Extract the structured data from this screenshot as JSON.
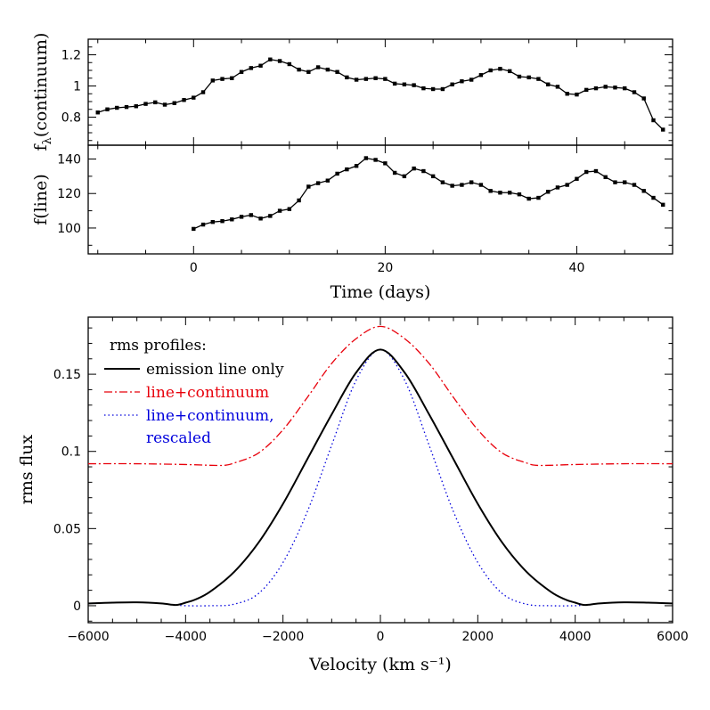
{
  "chart_data": [
    {
      "id": "continuum",
      "type": "line",
      "ylabel_main": "f",
      "ylabel_sub": "λ",
      "ylabel_rest": "(continuum)",
      "xlim": [
        -11,
        50
      ],
      "ylim": [
        0.62,
        1.3
      ],
      "yticks": [
        0.8,
        1.0,
        1.2
      ],
      "ytick_labels": [
        "0.8",
        "1",
        "1.2"
      ],
      "x": [
        -10,
        -9,
        -8,
        -7,
        -6,
        -5,
        -4,
        -3,
        -2,
        -1,
        0,
        1,
        2,
        3,
        4,
        5,
        6,
        7,
        8,
        9,
        10,
        11,
        12,
        13,
        14,
        15,
        16,
        17,
        18,
        19,
        20,
        21,
        22,
        23,
        24,
        25,
        26,
        27,
        28,
        29,
        30,
        31,
        32,
        33,
        34,
        35,
        36,
        37,
        38,
        39,
        40,
        41,
        42,
        43,
        44,
        45,
        46,
        47,
        48,
        49
      ],
      "y": [
        0.83,
        0.85,
        0.86,
        0.865,
        0.87,
        0.885,
        0.895,
        0.88,
        0.89,
        0.91,
        0.925,
        0.96,
        1.035,
        1.045,
        1.05,
        1.09,
        1.115,
        1.13,
        1.17,
        1.16,
        1.14,
        1.105,
        1.09,
        1.12,
        1.105,
        1.09,
        1.055,
        1.04,
        1.045,
        1.05,
        1.045,
        1.015,
        1.01,
        1.005,
        0.985,
        0.98,
        0.98,
        1.01,
        1.03,
        1.04,
        1.07,
        1.1,
        1.11,
        1.095,
        1.06,
        1.055,
        1.045,
        1.01,
        0.995,
        0.95,
        0.945,
        0.975,
        0.985,
        0.995,
        0.99,
        0.985,
        0.96,
        0.92,
        0.78,
        0.72
      ]
    },
    {
      "id": "line",
      "type": "line",
      "ylabel": "f(line)",
      "xlabel": "Time (days)",
      "xlim": [
        -11,
        50
      ],
      "ylim": [
        85,
        148
      ],
      "yticks": [
        100,
        120,
        140
      ],
      "ytick_labels": [
        "100",
        "120",
        "140"
      ],
      "xticks": [
        0,
        20,
        40
      ],
      "xtick_labels": [
        "0",
        "20",
        "40"
      ],
      "x": [
        0,
        1,
        2,
        3,
        4,
        5,
        6,
        7,
        8,
        9,
        10,
        11,
        12,
        13,
        14,
        15,
        16,
        17,
        18,
        19,
        20,
        21,
        22,
        23,
        24,
        25,
        26,
        27,
        28,
        29,
        30,
        31,
        32,
        33,
        34,
        35,
        36,
        37,
        38,
        39,
        40,
        41,
        42,
        43,
        44,
        45,
        46,
        47,
        48,
        49
      ],
      "y": [
        99.5,
        102,
        103.5,
        104,
        105,
        106.5,
        107.5,
        105.5,
        107,
        110,
        111,
        116,
        124,
        126,
        127.5,
        131.5,
        134,
        136,
        140.5,
        139.5,
        137.5,
        132,
        130,
        134.5,
        133,
        130,
        126.5,
        124.5,
        125,
        126.5,
        125,
        121.5,
        120.5,
        120.5,
        119.5,
        117,
        117.5,
        121,
        123.5,
        125,
        128.5,
        132.5,
        133,
        129.5,
        126.5,
        126.5,
        125,
        121.5,
        117.5,
        113.5
      ]
    },
    {
      "id": "rms",
      "type": "line",
      "xlabel": "Velocity (km s⁻¹)",
      "ylabel": "rms flux",
      "xlim": [
        -6000,
        6000
      ],
      "ylim": [
        -0.011,
        0.187
      ],
      "xticks": [
        -6000,
        -4000,
        -2000,
        0,
        2000,
        4000,
        6000
      ],
      "xtick_labels": [
        "−6000",
        "−4000",
        "−2000",
        "0",
        "2000",
        "4000",
        "6000"
      ],
      "yticks": [
        0,
        0.05,
        0.1,
        0.15
      ],
      "ytick_labels": [
        "0",
        "0.05",
        "0.1",
        "0.15"
      ],
      "legend_title": "rms profiles:",
      "legend_position": "top-left",
      "series": [
        {
          "name": "emission line only",
          "style": "solid",
          "color": "#000000",
          "x": [
            -6000,
            -5500,
            -5000,
            -4500,
            -4200,
            -4000,
            -3800,
            -3500,
            -3000,
            -2500,
            -2000,
            -1500,
            -1000,
            -500,
            0,
            500,
            1000,
            1500,
            2000,
            2500,
            3000,
            3500,
            3800,
            4000,
            4200,
            4500,
            5000,
            5500,
            6000
          ],
          "y": [
            0.0015,
            0.002,
            0.0022,
            0.0015,
            0.0005,
            0.002,
            0.004,
            0.009,
            0.022,
            0.041,
            0.066,
            0.095,
            0.124,
            0.151,
            0.166,
            0.151,
            0.124,
            0.095,
            0.066,
            0.041,
            0.022,
            0.009,
            0.004,
            0.002,
            0.0005,
            0.0015,
            0.0022,
            0.002,
            0.0015
          ]
        },
        {
          "name": "line+continuum",
          "style": "dashdot",
          "color": "#e8000b",
          "x": [
            -6000,
            -5000,
            -4000,
            -3500,
            -3200,
            -3000,
            -2500,
            -2000,
            -1500,
            -1000,
            -500,
            0,
            500,
            1000,
            1500,
            2000,
            2500,
            3000,
            3200,
            3500,
            4000,
            5000,
            6000
          ],
          "y": [
            0.092,
            0.092,
            0.0915,
            0.091,
            0.091,
            0.0925,
            0.099,
            0.114,
            0.135,
            0.157,
            0.173,
            0.181,
            0.173,
            0.157,
            0.135,
            0.114,
            0.099,
            0.0925,
            0.091,
            0.091,
            0.0915,
            0.092,
            0.092
          ]
        },
        {
          "name": "line+continuum, rescaled",
          "name_line1": "line+continuum,",
          "name_line2": "rescaled",
          "style": "dotted",
          "color": "#0000dd",
          "x": [
            -6000,
            -5500,
            -5000,
            -4500,
            -4200,
            -4000,
            -3500,
            -3000,
            -2500,
            -2000,
            -1500,
            -1000,
            -500,
            0,
            500,
            1000,
            1500,
            2000,
            2500,
            3000,
            3500,
            4000,
            4200,
            4500,
            5000,
            5500,
            6000
          ],
          "y": [
            0.0015,
            0.002,
            0.0022,
            0.0015,
            0.0005,
            0.0,
            0.0,
            0.001,
            0.008,
            0.028,
            0.061,
            0.104,
            0.146,
            0.166,
            0.146,
            0.104,
            0.061,
            0.028,
            0.008,
            0.001,
            0.0,
            0.0,
            0.0005,
            0.0015,
            0.0022,
            0.002,
            0.0015
          ]
        }
      ]
    }
  ]
}
